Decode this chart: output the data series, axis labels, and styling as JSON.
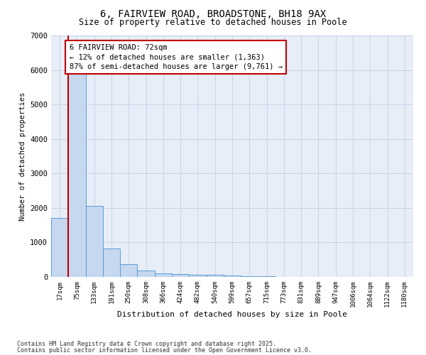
{
  "title_line1": "6, FAIRVIEW ROAD, BROADSTONE, BH18 9AX",
  "title_line2": "Size of property relative to detached houses in Poole",
  "xlabel": "Distribution of detached houses by size in Poole",
  "ylabel": "Number of detached properties",
  "categories": [
    "17sqm",
    "75sqm",
    "133sqm",
    "191sqm",
    "250sqm",
    "308sqm",
    "366sqm",
    "424sqm",
    "482sqm",
    "540sqm",
    "599sqm",
    "657sqm",
    "715sqm",
    "773sqm",
    "831sqm",
    "889sqm",
    "947sqm",
    "1006sqm",
    "1064sqm",
    "1122sqm",
    "1180sqm"
  ],
  "values": [
    1700,
    6100,
    2050,
    820,
    380,
    185,
    110,
    80,
    70,
    55,
    40,
    30,
    20,
    10,
    5,
    3,
    2,
    1,
    1,
    0,
    0
  ],
  "bar_color": "#c5d8f0",
  "bar_edge_color": "#5b9bd5",
  "vline_color": "#c00000",
  "vline_x": 1.0,
  "annotation_text": "6 FAIRVIEW ROAD: 72sqm\n← 12% of detached houses are smaller (1,363)\n87% of semi-detached houses are larger (9,761) →",
  "annotation_box_color": "#c00000",
  "ylim": [
    0,
    7000
  ],
  "yticks": [
    0,
    1000,
    2000,
    3000,
    4000,
    5000,
    6000,
    7000
  ],
  "grid_color": "#c8d4e8",
  "bg_color": "#e8eef8",
  "footer_line1": "Contains HM Land Registry data © Crown copyright and database right 2025.",
  "footer_line2": "Contains public sector information licensed under the Open Government Licence v3.0."
}
